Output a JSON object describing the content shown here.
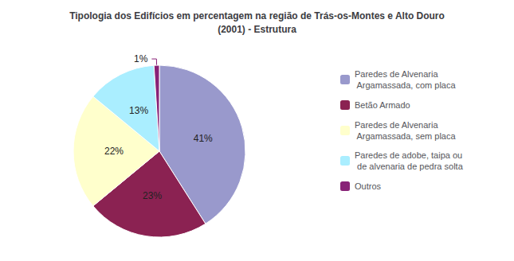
{
  "chart_data": {
    "type": "pie",
    "title": "Tipologia dos Edifícios em percentagem na região de Trás-os-Montes e Alto Douro\n(2001) - Estrutura",
    "categories": [
      "Paredes de Alvenaria\n Argamassada, com placa",
      "Betão Armado",
      "Paredes de Alvenaria\n Argamassada, sem placa",
      "Paredes de adobe, taipa ou\n de alvenaria de pedra solta",
      "Outros"
    ],
    "values": [
      41,
      23,
      22,
      13,
      1
    ],
    "value_labels": [
      "41%",
      "23%",
      "22%",
      "13%",
      "1%"
    ],
    "colors": [
      "#9999CC",
      "#8B2252",
      "#FFFFCC",
      "#AAEEFF",
      "#882277"
    ],
    "data_labels": true,
    "legend": "right"
  }
}
